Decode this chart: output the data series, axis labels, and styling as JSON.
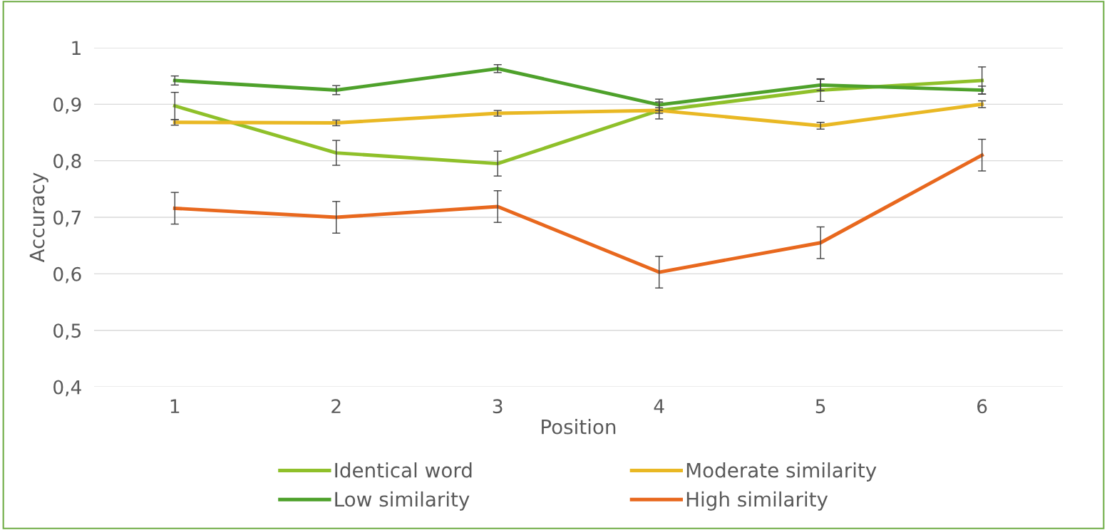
{
  "chart_data": {
    "type": "line",
    "xlabel": "Position",
    "ylabel": "Accuracy",
    "categories": [
      "1",
      "2",
      "3",
      "4",
      "5",
      "6"
    ],
    "series": [
      {
        "name": "Identical word",
        "color": "#8fc02a",
        "values": [
          0.897,
          0.814,
          0.795,
          0.889,
          0.925,
          0.942
        ],
        "errors": [
          0.024,
          0.022,
          0.022,
          0.015,
          0.02,
          0.024
        ]
      },
      {
        "name": "Low similarity",
        "color": "#4ea12b",
        "values": [
          0.942,
          0.925,
          0.963,
          0.899,
          0.934,
          0.925
        ],
        "errors": [
          0.008,
          0.008,
          0.007,
          0.01,
          0.01,
          0.007
        ]
      },
      {
        "name": "Moderate similarity",
        "color": "#e9b824",
        "values": [
          0.868,
          0.867,
          0.884,
          0.889,
          0.862,
          0.9
        ],
        "errors": [
          0.005,
          0.005,
          0.005,
          0.005,
          0.006,
          0.006
        ]
      },
      {
        "name": "High similarity",
        "color": "#e8681e",
        "values": [
          0.716,
          0.7,
          0.719,
          0.603,
          0.655,
          0.81
        ],
        "errors": [
          0.028,
          0.028,
          0.028,
          0.028,
          0.028,
          0.028
        ]
      }
    ],
    "ylim": [
      0.4,
      1
    ],
    "yticks": [
      {
        "value": 0.4,
        "label": "0,4"
      },
      {
        "value": 0.5,
        "label": "0,5"
      },
      {
        "value": 0.6,
        "label": "0,6"
      },
      {
        "value": 0.7,
        "label": "0,7"
      },
      {
        "value": 0.8,
        "label": "0,8"
      },
      {
        "value": 0.9,
        "label": "0,9"
      },
      1
    ],
    "grid": "y",
    "legend": "bottom",
    "marker": "none",
    "line_style": "solid"
  }
}
